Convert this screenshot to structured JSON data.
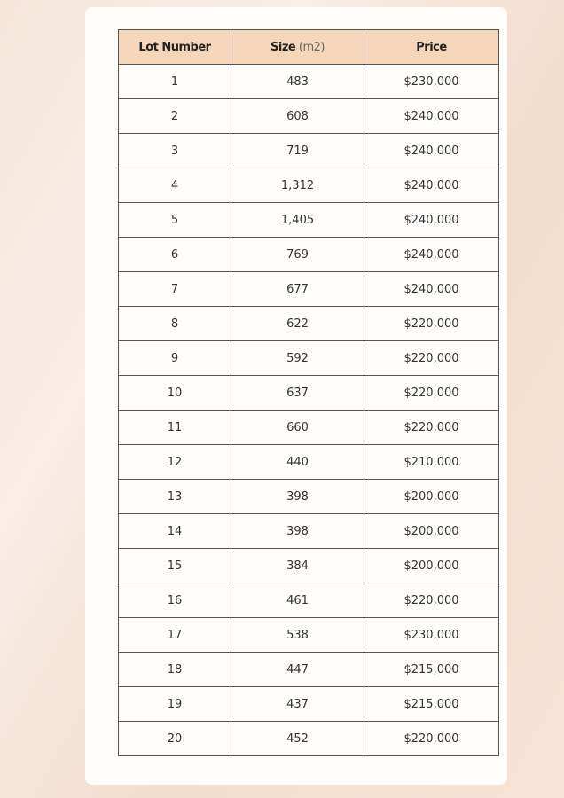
{
  "table": {
    "headers": {
      "lot": "Lot Number",
      "size": "Size",
      "size_unit": "(m2)",
      "price": "Price"
    },
    "rows": [
      {
        "lot": "1",
        "size": "483",
        "price": "$230,000"
      },
      {
        "lot": "2",
        "size": "608",
        "price": "$240,000"
      },
      {
        "lot": "3",
        "size": "719",
        "price": "$240,000"
      },
      {
        "lot": "4",
        "size": "1,312",
        "price": "$240,000"
      },
      {
        "lot": "5",
        "size": "1,405",
        "price": "$240,000"
      },
      {
        "lot": "6",
        "size": "769",
        "price": "$240,000"
      },
      {
        "lot": "7",
        "size": "677",
        "price": "$240,000"
      },
      {
        "lot": "8",
        "size": "622",
        "price": "$220,000"
      },
      {
        "lot": "9",
        "size": "592",
        "price": "$220,000"
      },
      {
        "lot": "10",
        "size": "637",
        "price": "$220,000"
      },
      {
        "lot": "11",
        "size": "660",
        "price": "$220,000"
      },
      {
        "lot": "12",
        "size": "440",
        "price": "$210,000"
      },
      {
        "lot": "13",
        "size": "398",
        "price": "$200,000"
      },
      {
        "lot": "14",
        "size": "398",
        "price": "$200,000"
      },
      {
        "lot": "15",
        "size": "384",
        "price": "$200,000"
      },
      {
        "lot": "16",
        "size": "461",
        "price": "$220,000"
      },
      {
        "lot": "17",
        "size": "538",
        "price": "$230,000"
      },
      {
        "lot": "18",
        "size": "447",
        "price": "$215,000"
      },
      {
        "lot": "19",
        "size": "437",
        "price": "$215,000"
      },
      {
        "lot": "20",
        "size": "452",
        "price": "$220,000"
      }
    ]
  },
  "colors": {
    "header_bg": "#f5d6ba",
    "border": "#555555"
  }
}
